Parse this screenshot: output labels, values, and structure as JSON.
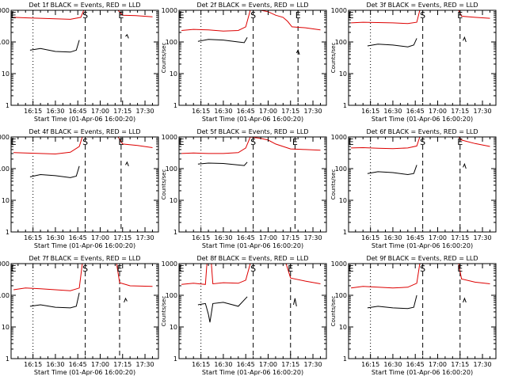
{
  "figure": {
    "event_colors": {
      "events": "#000000",
      "lld": "#dd0000"
    },
    "line_colors": {
      "axes": "#000000"
    }
  },
  "chart_data": [
    {
      "type": "line",
      "title": "Det 1f BLACK = Events, RED = LLD",
      "xlabel": "Start Time (01-Apr-06 16:00:20)",
      "ylabel": "Counts/sec",
      "x_ticks": [
        "16:15",
        "16:30",
        "16:45",
        "17:00",
        "17:15",
        "17:30"
      ],
      "y_ticks": [
        "1",
        "10",
        "100",
        "1000"
      ],
      "ylim": [
        1,
        1000
      ],
      "y_scale": "log",
      "markers": [
        {
          "label": "E",
          "x": "16:02"
        },
        {
          "label": "S",
          "x": "16:50"
        },
        {
          "label": "E",
          "x": "17:14"
        }
      ],
      "series": [
        {
          "color": "red",
          "x": [
            "16:02",
            "16:10",
            "16:20",
            "16:30",
            "16:40",
            "16:47",
            "16:49",
            "17:12",
            "17:15",
            "17:24",
            "17:35"
          ],
          "values": [
            600,
            580,
            560,
            540,
            520,
            600,
            1000,
            1000,
            700,
            680,
            620
          ]
        },
        {
          "color": "black",
          "x": [
            "16:13",
            "16:20",
            "16:30",
            "16:40",
            "16:44",
            "16:46"
          ],
          "values": [
            55,
            62,
            50,
            48,
            55,
            115
          ]
        },
        {
          "color": "black",
          "x": [
            "17:17",
            "17:18",
            "17:19"
          ],
          "values": [
            150,
            170,
            130
          ]
        }
      ]
    },
    {
      "type": "line",
      "title": "Det 2f BLACK = Events, RED = LLD",
      "xlabel": "Start Time (01-Apr-06 16:00:20)",
      "ylabel": "Counts/sec",
      "x_ticks": [
        "16:15",
        "16:30",
        "16:45",
        "17:00",
        "17:15",
        "17:30"
      ],
      "y_ticks": [
        "1",
        "10",
        "100",
        "1000"
      ],
      "ylim": [
        1,
        1000
      ],
      "y_scale": "log",
      "markers": [
        {
          "label": "E",
          "x": "16:02"
        },
        {
          "label": "S",
          "x": "16:50"
        },
        {
          "label": "E",
          "x": "17:20"
        }
      ],
      "series": [
        {
          "color": "red",
          "x": [
            "16:02",
            "16:10",
            "16:20",
            "16:30",
            "16:40",
            "16:45",
            "16:48",
            "16:55",
            "17:00",
            "17:05",
            "17:10",
            "17:13",
            "17:16",
            "17:25",
            "17:35"
          ],
          "values": [
            230,
            250,
            240,
            220,
            230,
            300,
            1000,
            1000,
            900,
            700,
            600,
            450,
            300,
            280,
            240
          ]
        },
        {
          "color": "black",
          "x": [
            "16:13",
            "16:20",
            "16:30",
            "16:40",
            "16:44",
            "16:46"
          ],
          "values": [
            105,
            120,
            115,
            100,
            95,
            140
          ]
        },
        {
          "color": "black",
          "x": [
            "17:19",
            "17:20",
            "17:21"
          ],
          "values": [
            45,
            55,
            40
          ]
        }
      ]
    },
    {
      "type": "line",
      "title": "Det 3f BLACK = Events, RED = LLD",
      "xlabel": "Start Time (01-Apr-06 16:00:20)",
      "ylabel": "Counts/sec",
      "x_ticks": [
        "16:15",
        "16:30",
        "16:45",
        "17:00",
        "17:15",
        "17:30"
      ],
      "y_ticks": [
        "1",
        "10",
        "100",
        "1000"
      ],
      "ylim": [
        1,
        1000
      ],
      "y_scale": "log",
      "markers": [
        {
          "label": "E",
          "x": "16:02"
        },
        {
          "label": "S",
          "x": "16:50"
        },
        {
          "label": "E",
          "x": "17:15"
        }
      ],
      "series": [
        {
          "color": "red",
          "x": [
            "16:02",
            "16:10",
            "16:20",
            "16:30",
            "16:40",
            "16:46",
            "16:48",
            "17:14",
            "17:16",
            "17:25",
            "17:35"
          ],
          "values": [
            400,
            420,
            410,
            400,
            380,
            420,
            1000,
            1000,
            650,
            600,
            560
          ]
        },
        {
          "color": "black",
          "x": [
            "16:13",
            "16:20",
            "16:30",
            "16:40",
            "16:44",
            "16:46"
          ],
          "values": [
            75,
            85,
            80,
            70,
            80,
            130
          ]
        },
        {
          "color": "black",
          "x": [
            "17:17",
            "17:18",
            "17:19"
          ],
          "values": [
            110,
            140,
            100
          ]
        }
      ]
    },
    {
      "type": "line",
      "title": "Det 4f BLACK = Events, RED = LLD",
      "xlabel": "Start Time (01-Apr-06 16:00:20)",
      "ylabel": "Counts/sec",
      "x_ticks": [
        "16:15",
        "16:30",
        "16:45",
        "17:00",
        "17:15",
        "17:30"
      ],
      "y_ticks": [
        "1",
        "10",
        "100",
        "1000"
      ],
      "ylim": [
        1,
        1000
      ],
      "y_scale": "log",
      "markers": [
        {
          "label": "E",
          "x": "16:02"
        },
        {
          "label": "S",
          "x": "16:50"
        },
        {
          "label": "E",
          "x": "17:14"
        }
      ],
      "series": [
        {
          "color": "red",
          "x": [
            "16:02",
            "16:10",
            "16:20",
            "16:30",
            "16:40",
            "16:46",
            "16:48",
            "17:12",
            "17:15",
            "17:25",
            "17:35"
          ],
          "values": [
            320,
            310,
            300,
            290,
            330,
            500,
            1000,
            1000,
            600,
            540,
            460
          ]
        },
        {
          "color": "black",
          "x": [
            "16:13",
            "16:20",
            "16:30",
            "16:40",
            "16:44",
            "16:46"
          ],
          "values": [
            55,
            65,
            60,
            52,
            58,
            120
          ]
        },
        {
          "color": "black",
          "x": [
            "17:17",
            "17:18",
            "17:19"
          ],
          "values": [
            130,
            160,
            120
          ]
        }
      ]
    },
    {
      "type": "line",
      "title": "Det 5f BLACK = Events, RED = LLD",
      "xlabel": "Start Time (01-Apr-06 16:00:20)",
      "ylabel": "Counts/sec",
      "x_ticks": [
        "16:15",
        "16:30",
        "16:45",
        "17:00",
        "17:15",
        "17:30"
      ],
      "y_ticks": [
        "1",
        "10",
        "100",
        "1000"
      ],
      "ylim": [
        1,
        1000
      ],
      "y_scale": "log",
      "markers": [
        {
          "label": "E",
          "x": "16:02"
        },
        {
          "label": "S",
          "x": "16:50"
        },
        {
          "label": "E",
          "x": "17:18"
        }
      ],
      "series": [
        {
          "color": "red",
          "x": [
            "16:02",
            "16:10",
            "16:20",
            "16:30",
            "16:40",
            "16:45",
            "16:48",
            "16:55",
            "17:00",
            "17:05",
            "17:10",
            "17:15",
            "17:25",
            "17:35"
          ],
          "values": [
            300,
            310,
            300,
            300,
            320,
            450,
            1000,
            900,
            800,
            600,
            500,
            420,
            400,
            380
          ]
        },
        {
          "color": "black",
          "x": [
            "16:13",
            "16:20",
            "16:30",
            "16:40",
            "16:44",
            "16:46"
          ],
          "values": [
            140,
            150,
            145,
            130,
            125,
            160
          ]
        }
      ]
    },
    {
      "type": "line",
      "title": "Det 6f BLACK = Events, RED = LLD",
      "xlabel": "Start Time (01-Apr-06 16:00:20)",
      "ylabel": "Counts/sec",
      "x_ticks": [
        "16:15",
        "16:30",
        "16:45",
        "17:00",
        "17:15",
        "17:30"
      ],
      "y_ticks": [
        "1",
        "10",
        "100",
        "1000"
      ],
      "ylim": [
        1,
        1000
      ],
      "y_scale": "log",
      "markers": [
        {
          "label": "E",
          "x": "16:02"
        },
        {
          "label": "S",
          "x": "16:50"
        },
        {
          "label": "E",
          "x": "17:15"
        }
      ],
      "series": [
        {
          "color": "red",
          "x": [
            "16:02",
            "16:10",
            "16:20",
            "16:30",
            "16:40",
            "16:46",
            "16:48",
            "17:14",
            "17:16",
            "17:25",
            "17:35"
          ],
          "values": [
            450,
            460,
            440,
            430,
            450,
            520,
            1000,
            1000,
            800,
            620,
            500
          ]
        },
        {
          "color": "black",
          "x": [
            "16:13",
            "16:20",
            "16:30",
            "16:40",
            "16:44",
            "16:46"
          ],
          "values": [
            70,
            80,
            75,
            65,
            70,
            130
          ]
        },
        {
          "color": "black",
          "x": [
            "17:17",
            "17:18",
            "17:19"
          ],
          "values": [
            110,
            140,
            100
          ]
        }
      ]
    },
    {
      "type": "line",
      "title": "Det 7f BLACK = Events, RED = LLD",
      "xlabel": "Start Time (01-Apr-06 16:00:20)",
      "ylabel": "Counts/sec",
      "x_ticks": [
        "16:15",
        "16:30",
        "16:45",
        "17:00",
        "17:15",
        "17:30"
      ],
      "y_ticks": [
        "1",
        "10",
        "100",
        "1000"
      ],
      "ylim": [
        1,
        1000
      ],
      "y_scale": "log",
      "markers": [
        {
          "label": "E",
          "x": "16:02"
        },
        {
          "label": "S",
          "x": "16:50"
        },
        {
          "label": "E",
          "x": "17:13"
        }
      ],
      "series": [
        {
          "color": "red",
          "x": [
            "16:02",
            "16:10",
            "16:20",
            "16:30",
            "16:40",
            "16:46",
            "16:48",
            "17:11",
            "17:13",
            "17:20",
            "17:35"
          ],
          "values": [
            150,
            170,
            160,
            150,
            140,
            170,
            1000,
            1000,
            250,
            200,
            190
          ]
        },
        {
          "color": "black",
          "x": [
            "16:13",
            "16:20",
            "16:30",
            "16:40",
            "16:44",
            "16:46"
          ],
          "values": [
            45,
            50,
            42,
            40,
            45,
            120
          ]
        },
        {
          "color": "black",
          "x": [
            "17:16",
            "17:17",
            "17:18"
          ],
          "values": [
            60,
            80,
            65
          ]
        }
      ]
    },
    {
      "type": "line",
      "title": "Det 8f BLACK = Events, RED = LLD",
      "xlabel": "Start Time (01-Apr-06 16:00:20)",
      "ylabel": "Counts/sec",
      "x_ticks": [
        "16:15",
        "16:30",
        "16:45",
        "17:00",
        "17:15",
        "17:30"
      ],
      "y_ticks": [
        "1",
        "10",
        "100",
        "1000"
      ],
      "ylim": [
        1,
        1000
      ],
      "y_scale": "log",
      "markers": [
        {
          "label": "E",
          "x": "16:02"
        },
        {
          "label": "S",
          "x": "16:50"
        },
        {
          "label": "E",
          "x": "17:15"
        }
      ],
      "series": [
        {
          "color": "red",
          "x": [
            "16:02",
            "16:10",
            "16:18",
            "16:19",
            "16:20",
            "16:22",
            "16:23",
            "16:30",
            "16:40",
            "16:45",
            "16:48",
            "17:12",
            "17:15",
            "17:25",
            "17:35"
          ],
          "values": [
            220,
            240,
            220,
            1000,
            1000,
            1000,
            230,
            250,
            240,
            300,
            1000,
            1000,
            350,
            280,
            230
          ]
        },
        {
          "color": "black",
          "x": [
            "16:13",
            "16:18",
            "16:20",
            "16:21",
            "16:23",
            "16:30",
            "16:40",
            "16:46"
          ],
          "values": [
            50,
            55,
            25,
            14,
            55,
            60,
            45,
            90
          ]
        },
        {
          "color": "black",
          "x": [
            "17:17",
            "17:18",
            "17:19"
          ],
          "values": [
            50,
            80,
            45
          ]
        }
      ]
    },
    {
      "type": "line",
      "title": "Det 9f BLACK = Events, RED = LLD",
      "xlabel": "Start Time (01-Apr-06 16:00:20)",
      "ylabel": "Counts/sec",
      "x_ticks": [
        "16:15",
        "16:30",
        "16:45",
        "17:00",
        "17:15",
        "17:30"
      ],
      "y_ticks": [
        "1",
        "10",
        "100",
        "1000"
      ],
      "ylim": [
        1,
        1000
      ],
      "y_scale": "log",
      "markers": [
        {
          "label": "E",
          "x": "16:02"
        },
        {
          "label": "S",
          "x": "16:50"
        },
        {
          "label": "E",
          "x": "17:15"
        }
      ],
      "series": [
        {
          "color": "red",
          "x": [
            "16:02",
            "16:10",
            "16:20",
            "16:30",
            "16:40",
            "16:46",
            "16:48",
            "17:14",
            "17:16",
            "17:25",
            "17:35"
          ],
          "values": [
            170,
            190,
            180,
            170,
            180,
            240,
            1000,
            1000,
            330,
            260,
            230
          ]
        },
        {
          "color": "black",
          "x": [
            "16:13",
            "16:20",
            "16:30",
            "16:40",
            "16:44",
            "16:46"
          ],
          "values": [
            40,
            45,
            40,
            38,
            42,
            100
          ]
        },
        {
          "color": "black",
          "x": [
            "17:17",
            "17:18",
            "17:19"
          ],
          "values": [
            60,
            80,
            60
          ]
        }
      ]
    }
  ]
}
